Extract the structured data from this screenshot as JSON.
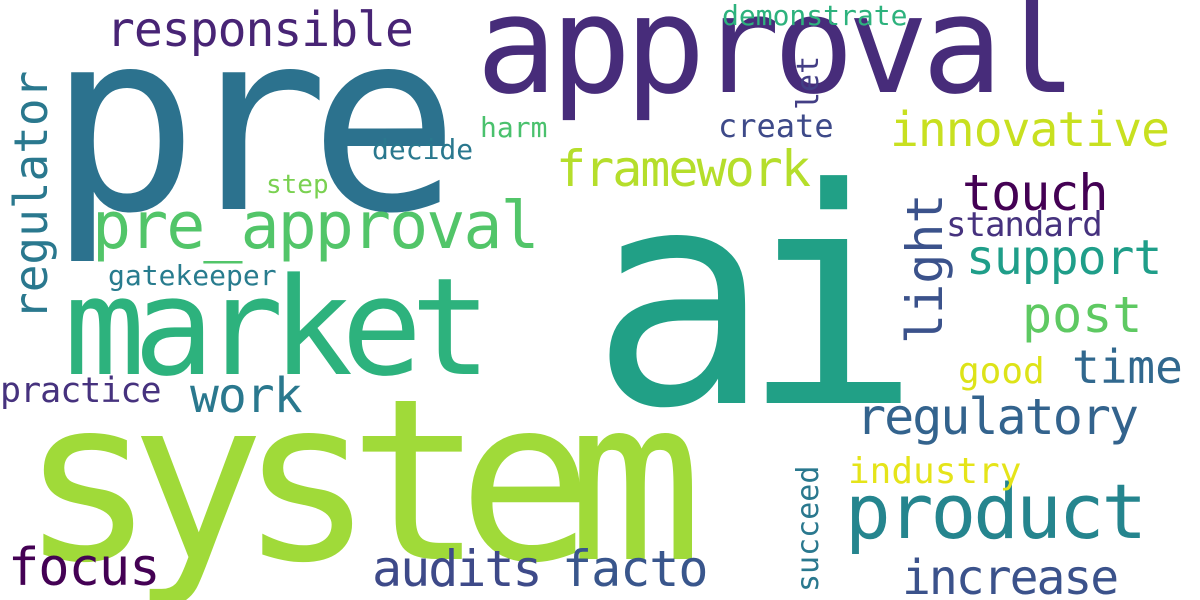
{
  "words": {
    "ai": {
      "text": "ai",
      "color": "#21a086"
    },
    "pre": {
      "text": "pre",
      "color": "#2c728e"
    },
    "system": {
      "text": "system",
      "color": "#a0da39"
    },
    "approval": {
      "text": "approval",
      "color": "#472c7a"
    },
    "market": {
      "text": "market",
      "color": "#2db27d"
    },
    "product": {
      "text": "product",
      "color": "#25858e"
    },
    "pre_approval": {
      "text": "pre_approval",
      "color": "#52c569"
    },
    "responsible": {
      "text": "responsible",
      "color": "#482475"
    },
    "regulator": {
      "text": "regulator",
      "color": "#2a788e"
    },
    "framework": {
      "text": "framework",
      "color": "#b5de2b"
    },
    "innovative": {
      "text": "innovative",
      "color": "#c8e020"
    },
    "touch": {
      "text": "touch",
      "color": "#440154"
    },
    "light": {
      "text": "light",
      "color": "#3b528b"
    },
    "support": {
      "text": "support",
      "color": "#1f9e89"
    },
    "standard": {
      "text": "standard",
      "color": "#46327e"
    },
    "post": {
      "text": "post",
      "color": "#5ec962"
    },
    "time": {
      "text": "time",
      "color": "#31688e"
    },
    "regulatory": {
      "text": "regulatory",
      "color": "#33638d"
    },
    "work": {
      "text": "work",
      "color": "#2a788e"
    },
    "practice": {
      "text": "practice",
      "color": "#46327e"
    },
    "good": {
      "text": "good",
      "color": "#dde318"
    },
    "industry": {
      "text": "industry",
      "color": "#e5e419"
    },
    "focus": {
      "text": "focus",
      "color": "#440154"
    },
    "audits": {
      "text": "audits",
      "color": "#3e4a89"
    },
    "facto": {
      "text": "facto",
      "color": "#39568c"
    },
    "increase": {
      "text": "increase",
      "color": "#3b528b"
    },
    "succeed": {
      "text": "succeed",
      "color": "#2a788e"
    },
    "demonstrate": {
      "text": "demonstrate",
      "color": "#2db27d"
    },
    "create": {
      "text": "create",
      "color": "#3e4a89"
    },
    "let": {
      "text": "let",
      "color": "#433e85"
    },
    "harm": {
      "text": "harm",
      "color": "#4ac16d"
    },
    "decide": {
      "text": "decide",
      "color": "#2a788e"
    },
    "step": {
      "text": "step",
      "color": "#7ad151"
    },
    "gatekeeper": {
      "text": "gatekeeper",
      "color": "#287c8e"
    }
  }
}
